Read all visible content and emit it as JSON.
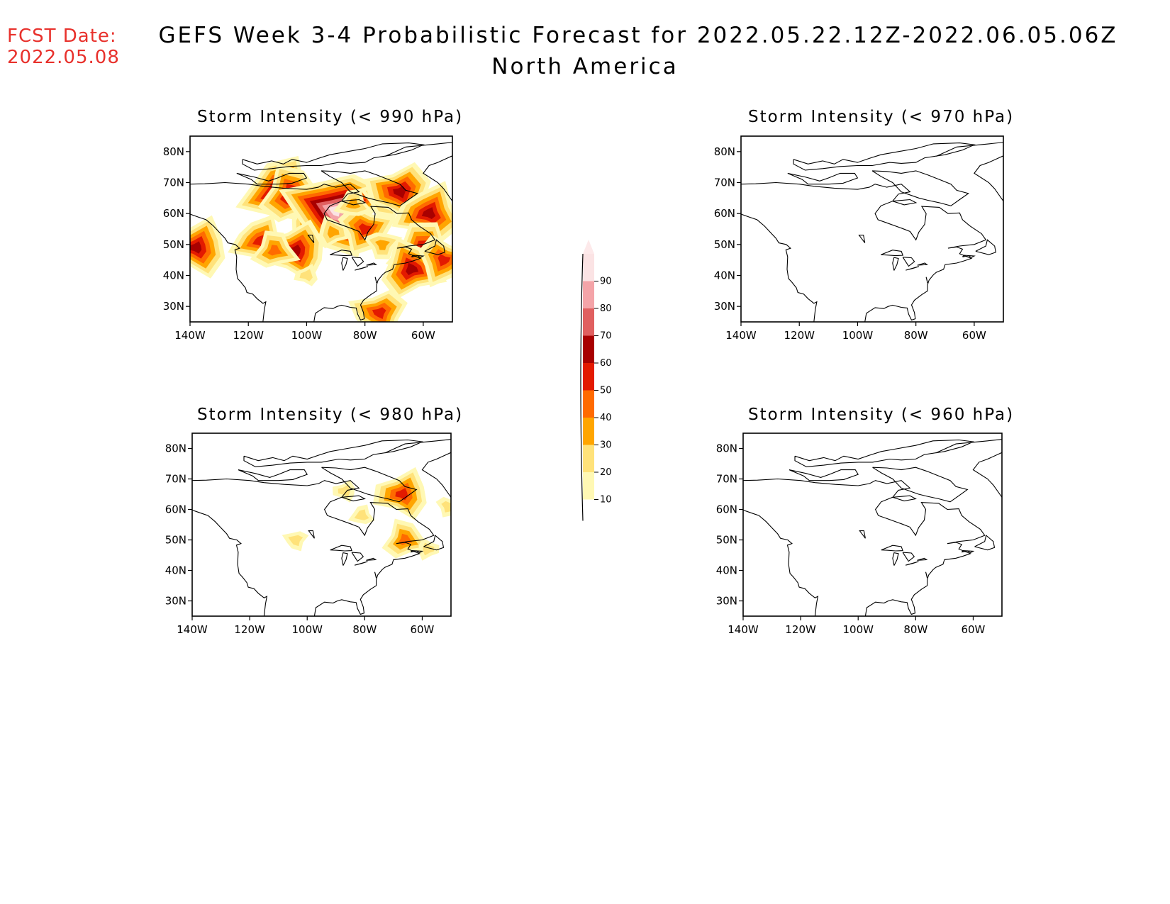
{
  "header": {
    "fcst_label": "FCST Date:",
    "fcst_date": "2022.05.08",
    "title": "GEFS Week 3-4 Probabilistic Forecast for 2022.05.22.12Z-2022.06.05.06Z",
    "subtitle": "North America"
  },
  "colors": {
    "fcst_text": "#e8312c",
    "scale": [
      "#fff8b4",
      "#ffe27a",
      "#ffa500",
      "#ff6a00",
      "#e31a00",
      "#a80000",
      "#e06060",
      "#f4a4a8",
      "#fbe3e4"
    ]
  },
  "legend": {
    "levels": [
      "10",
      "20",
      "30",
      "40",
      "50",
      "60",
      "70",
      "80",
      "90"
    ]
  },
  "axes": {
    "lat_ticks": [
      "80N",
      "70N",
      "60N",
      "50N",
      "40N",
      "30N"
    ],
    "lon_ticks": [
      "140W",
      "120W",
      "100W",
      "80W",
      "60W"
    ],
    "lat_range": [
      25,
      85
    ],
    "lon_range": [
      -140,
      -50
    ]
  },
  "panels": [
    {
      "title": "Storm Intensity (< 990 hPa)",
      "blobs": [
        {
          "lon": -138,
          "lat": 49,
          "level": 5
        },
        {
          "lon": -109,
          "lat": 67,
          "level": 6
        },
        {
          "lon": -105,
          "lat": 66,
          "level": 5
        },
        {
          "lon": -99,
          "lat": 56,
          "level": 3
        },
        {
          "lon": -95,
          "lat": 60,
          "level": 5
        },
        {
          "lon": -90,
          "lat": 61,
          "level": 8
        },
        {
          "lon": -104,
          "lat": 48,
          "level": 5
        },
        {
          "lon": -116,
          "lat": 51,
          "level": 4
        },
        {
          "lon": -111,
          "lat": 48,
          "level": 3
        },
        {
          "lon": -91,
          "lat": 54,
          "level": 2
        },
        {
          "lon": -80,
          "lat": 55,
          "level": 4
        },
        {
          "lon": -73,
          "lat": 65,
          "level": 3
        },
        {
          "lon": -68,
          "lat": 67,
          "level": 5
        },
        {
          "lon": -58,
          "lat": 60,
          "level": 5
        },
        {
          "lon": -60,
          "lat": 48,
          "level": 5
        },
        {
          "lon": -64,
          "lat": 42,
          "level": 5
        },
        {
          "lon": -53,
          "lat": 45,
          "level": 4
        },
        {
          "lon": -74,
          "lat": 50,
          "level": 2
        },
        {
          "lon": -75,
          "lat": 28,
          "level": 4
        },
        {
          "lon": -100,
          "lat": 40,
          "level": 1
        },
        {
          "lon": -84,
          "lat": 63,
          "level": 2
        }
      ]
    },
    {
      "title": "Storm Intensity (< 970 hPa)",
      "blobs": []
    },
    {
      "title": "Storm Intensity (< 980 hPa)",
      "blobs": [
        {
          "lon": -67,
          "lat": 65,
          "level": 4
        },
        {
          "lon": -81,
          "lat": 58,
          "level": 1
        },
        {
          "lon": -66,
          "lat": 50,
          "level": 3
        },
        {
          "lon": -58,
          "lat": 47,
          "level": 1
        },
        {
          "lon": -51,
          "lat": 61,
          "level": 1
        },
        {
          "lon": -104,
          "lat": 50,
          "level": 1
        },
        {
          "lon": -87,
          "lat": 66,
          "level": 1
        }
      ]
    },
    {
      "title": "Storm Intensity (< 960 hPa)",
      "blobs": []
    }
  ]
}
